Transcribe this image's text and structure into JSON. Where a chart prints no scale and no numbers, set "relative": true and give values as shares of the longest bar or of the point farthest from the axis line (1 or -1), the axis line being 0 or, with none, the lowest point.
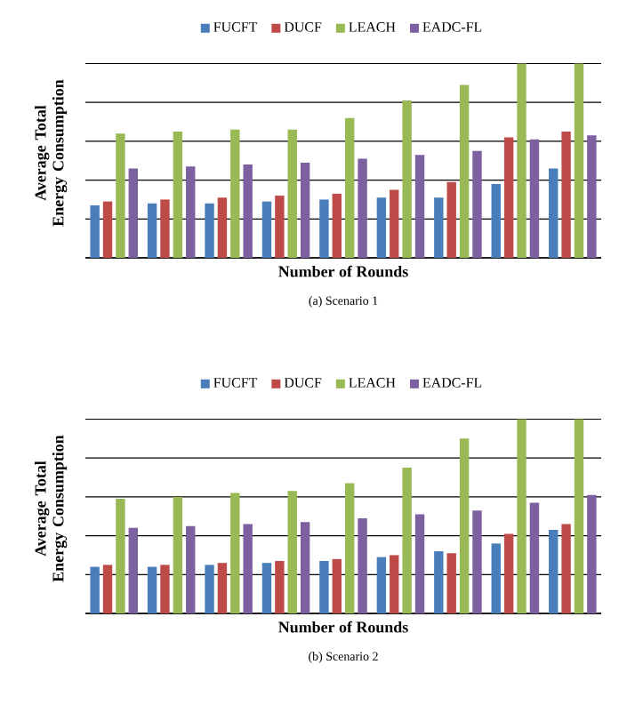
{
  "chart_data": [
    {
      "type": "bar",
      "title": "(a) Scenario 1",
      "xlabel": "Number of Rounds",
      "ylabel": "Average Total Energy Consumption",
      "relative": true,
      "grid": "y",
      "legend": "top",
      "categories": [
        null,
        null,
        null,
        null,
        null,
        null,
        null,
        null,
        null
      ],
      "series": [
        {
          "name": "FUCFT",
          "color": "#4a7ebb",
          "values": [
            0.27,
            0.28,
            0.28,
            0.29,
            0.3,
            0.31,
            0.31,
            0.38,
            0.46
          ]
        },
        {
          "name": "DUCF",
          "color": "#be4b48",
          "values": [
            0.29,
            0.3,
            0.31,
            0.32,
            0.33,
            0.35,
            0.39,
            0.62,
            0.65
          ]
        },
        {
          "name": "LEACH",
          "color": "#98b954",
          "values": [
            0.64,
            0.65,
            0.66,
            0.66,
            0.72,
            0.81,
            0.89,
            1,
            1
          ]
        },
        {
          "name": "EADC-FL",
          "color": "#7d60a0",
          "values": [
            0.46,
            0.47,
            0.48,
            0.49,
            0.51,
            0.53,
            0.55,
            0.61,
            0.63
          ]
        }
      ]
    },
    {
      "type": "bar",
      "title": "(b) Scenario 2",
      "xlabel": "Number of Rounds",
      "ylabel": "Average Total Energy Consumption",
      "relative": true,
      "grid": "y",
      "legend": "top",
      "categories": [
        null,
        null,
        null,
        null,
        null,
        null,
        null,
        null,
        null
      ],
      "series": [
        {
          "name": "FUCFT",
          "color": "#4a7ebb",
          "values": [
            0.24,
            0.24,
            0.25,
            0.26,
            0.27,
            0.29,
            0.32,
            0.36,
            0.43
          ]
        },
        {
          "name": "DUCF",
          "color": "#be4b48",
          "values": [
            0.25,
            0.25,
            0.26,
            0.27,
            0.28,
            0.3,
            0.31,
            0.41,
            0.46
          ]
        },
        {
          "name": "LEACH",
          "color": "#98b954",
          "values": [
            0.59,
            0.6,
            0.62,
            0.63,
            0.67,
            0.75,
            0.9,
            1,
            1
          ]
        },
        {
          "name": "EADC-FL",
          "color": "#7d60a0",
          "values": [
            0.44,
            0.45,
            0.46,
            0.47,
            0.49,
            0.51,
            0.53,
            0.57,
            0.61
          ]
        }
      ]
    }
  ]
}
